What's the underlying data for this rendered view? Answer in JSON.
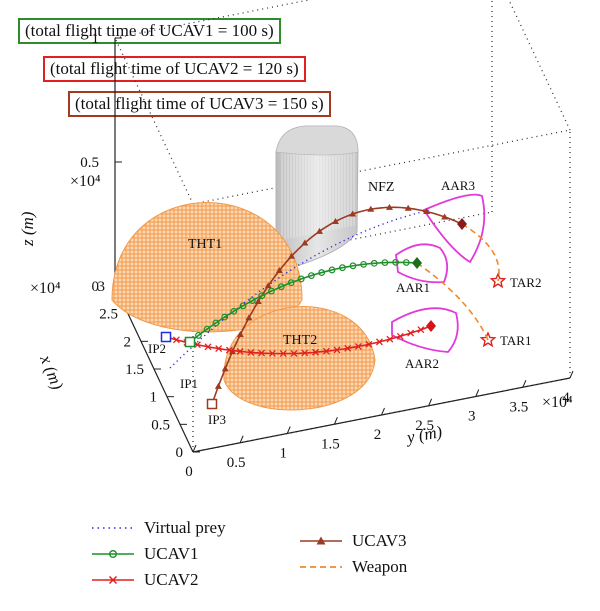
{
  "notes": [
    {
      "text": "(total flight time of UCAV1 = 100 s)",
      "color": "#2e8b2e"
    },
    {
      "text": "(total flight time of UCAV2 = 120 s)",
      "color": "#e0211f"
    },
    {
      "text": "(total flight time of UCAV3 = 150 s)",
      "color": "#a13a1e"
    }
  ],
  "chart_data": {
    "type": "3d-trajectory",
    "axes": {
      "x": {
        "label": "x (m)",
        "multiplier": "×10⁴",
        "ticks": [
          "0",
          "0.5",
          "1",
          "1.5",
          "2",
          "2.5",
          "3"
        ],
        "range": [
          0,
          30000
        ]
      },
      "y": {
        "label": "y (m)",
        "multiplier": "×10⁴",
        "ticks": [
          "0",
          "0.5",
          "1",
          "1.5",
          "2",
          "2.5",
          "3",
          "3.5",
          "4"
        ],
        "range": [
          0,
          40000
        ]
      },
      "z": {
        "label": "z (m)",
        "multiplier": "×10⁴",
        "ticks": [
          "0",
          "0.5",
          "1"
        ],
        "range": [
          0,
          10000
        ]
      }
    },
    "threats": [
      {
        "label": "THT1",
        "center": [
          20000,
          5000,
          0
        ],
        "radius": 9000
      },
      {
        "label": "THT2",
        "center": [
          7000,
          15000,
          0
        ],
        "radius": 6500
      }
    ],
    "no_fly_zone": {
      "label": "NFZ"
    },
    "refuel_areas": [
      "AAR1",
      "AAR2",
      "AAR3"
    ],
    "targets": [
      "TAR1",
      "TAR2"
    ],
    "initial_points": [
      "IP1",
      "IP2",
      "IP3"
    ],
    "series": [
      {
        "name": "Virtual prey",
        "color": "#2b2bd9",
        "style": "dotted"
      },
      {
        "name": "UCAV1",
        "color": "#1f8f2a",
        "marker": "circle",
        "flight_time_s": 100
      },
      {
        "name": "UCAV2",
        "color": "#e0211f",
        "marker": "x",
        "flight_time_s": 120
      },
      {
        "name": "UCAV3",
        "color": "#9c3a22",
        "marker": "triangle",
        "flight_time_s": 150
      },
      {
        "name": "Weapon",
        "color": "#f08a2c",
        "style": "dashed"
      }
    ],
    "colors": {
      "threat": "#f6a55a",
      "nfz": "#c9c9c9",
      "aar": "#e23ad8",
      "target": "#e0211f"
    }
  }
}
